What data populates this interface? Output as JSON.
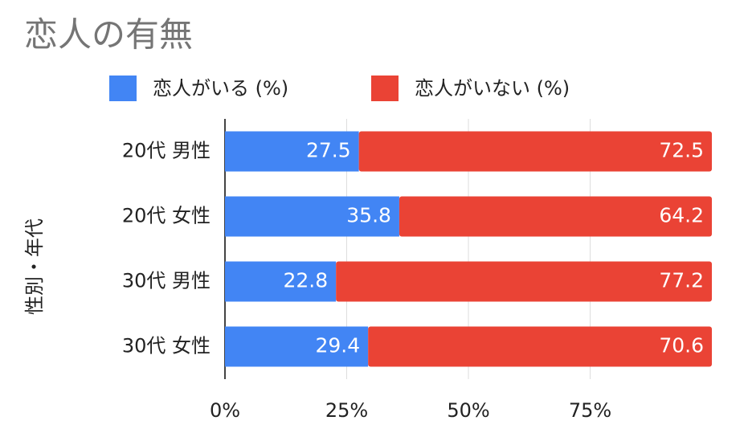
{
  "chart_data": {
    "type": "stacked-bar-horizontal",
    "title": "恋人の有無",
    "y_axis_label": "性別・年代",
    "categories": [
      "20代 男性",
      "20代 女性",
      "30代 男性",
      "30代 女性"
    ],
    "series": [
      {
        "name": "恋人がいる (%)",
        "color": "#4285f4",
        "values": [
          27.5,
          35.8,
          22.8,
          29.4
        ]
      },
      {
        "name": "恋人がいない (%)",
        "color": "#ea4335",
        "values": [
          72.5,
          64.2,
          77.2,
          70.6
        ]
      }
    ],
    "xlim": [
      0,
      100
    ],
    "xticks": [
      {
        "value": 0,
        "label": "0%"
      },
      {
        "value": 25,
        "label": "25%"
      },
      {
        "value": 50,
        "label": "50%"
      },
      {
        "value": 75,
        "label": "75%"
      }
    ],
    "grid": true,
    "legend": "top"
  }
}
